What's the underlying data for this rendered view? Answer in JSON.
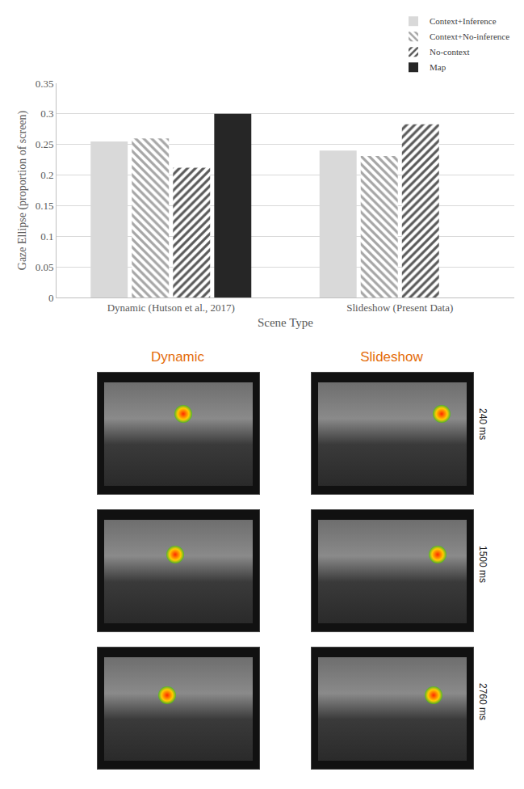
{
  "chart_data": {
    "type": "bar",
    "categories": [
      "Dynamic (Hutson et al., 2017)",
      "Slideshow (Present Data)"
    ],
    "series": [
      {
        "name": "Context+Inference",
        "color": "#d9d9d9",
        "values": [
          0.255,
          0.24
        ]
      },
      {
        "name": "Context+No-inference",
        "color": "#a6a6a6",
        "values": [
          0.26,
          0.231
        ]
      },
      {
        "name": "No-context",
        "color": "#595959",
        "values": [
          0.212,
          0.283
        ]
      },
      {
        "name": "Map",
        "color": "#262626",
        "values": [
          0.3,
          null
        ]
      }
    ],
    "x_label": "Scene Type",
    "y_label": "Gaze Ellipse (proportion of screen)",
    "ylim": [
      0,
      0.35
    ],
    "yticks": [
      0,
      0.05,
      0.1,
      0.15,
      0.2,
      0.25,
      0.3,
      0.35
    ],
    "grid": true,
    "legend": "top right"
  },
  "panels": {
    "columns": [
      "Dynamic",
      "Slideshow"
    ],
    "rows": [
      "240 ms",
      "1500 ms",
      "2760 ms"
    ]
  }
}
